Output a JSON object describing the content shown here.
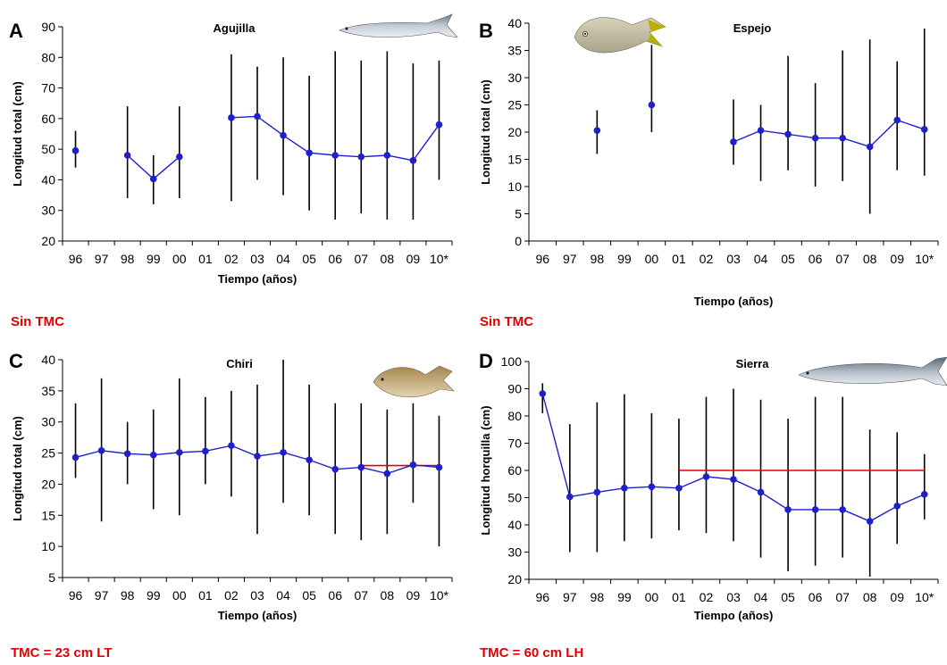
{
  "chart_data": [
    {
      "type": "scatter",
      "panel": "A",
      "title": "Agujilla",
      "fish_icon": "barracuda-fish-icon",
      "xlabel": "Tiempo (años)",
      "ylabel": "Longitud total (cm)",
      "ylim": [
        20,
        90
      ],
      "yticks": [
        20,
        30,
        40,
        50,
        60,
        70,
        80,
        90
      ],
      "categories": [
        "96",
        "97",
        "98",
        "99",
        "00",
        "01",
        "02",
        "03",
        "04",
        "05",
        "06",
        "07",
        "08",
        "09",
        "10*"
      ],
      "mean": [
        49.5,
        null,
        48,
        40.3,
        47.5,
        null,
        60.3,
        60.7,
        54.5,
        48.8,
        48,
        47.5,
        48,
        46.3,
        58
      ],
      "min": [
        44,
        null,
        34,
        32,
        34,
        null,
        33,
        40,
        35,
        30,
        27,
        29,
        27,
        27,
        40
      ],
      "max": [
        56,
        null,
        64,
        48,
        64,
        null,
        81,
        77,
        80,
        74,
        82,
        79,
        82,
        78,
        79
      ],
      "reference": null,
      "note": "Sin TMC",
      "series_color": "#1f1fcc",
      "bar_color": "#000000",
      "reference_color": "#e00000"
    },
    {
      "type": "scatter",
      "panel": "B",
      "title": "Espejo",
      "fish_icon": "lookdown-fish-icon",
      "xlabel": "Tiempo (años)",
      "ylabel": "Longitud total (cm)",
      "ylim": [
        0,
        40
      ],
      "yticks": [
        0,
        5,
        10,
        15,
        20,
        25,
        30,
        35,
        40
      ],
      "categories": [
        "96",
        "97",
        "98",
        "99",
        "00",
        "01",
        "02",
        "03",
        "04",
        "05",
        "06",
        "07",
        "08",
        "09",
        "10*"
      ],
      "mean": [
        null,
        null,
        20.3,
        null,
        25,
        null,
        null,
        18.2,
        20.3,
        19.6,
        18.9,
        18.9,
        17.3,
        22.2,
        20.5
      ],
      "min": [
        null,
        null,
        16,
        null,
        20,
        null,
        null,
        14,
        11,
        13,
        10,
        11,
        5,
        13,
        12
      ],
      "max": [
        null,
        null,
        24,
        null,
        36,
        null,
        null,
        26,
        25,
        34,
        29,
        35,
        37,
        33,
        39
      ],
      "reference": null,
      "note": "Sin TMC",
      "series_color": "#1f1fcc",
      "bar_color": "#000000",
      "reference_color": "#e00000"
    },
    {
      "type": "scatter",
      "panel": "C",
      "title": "Chiri",
      "fish_icon": "pompano-fish-icon",
      "xlabel": "Tiempo (años)",
      "ylabel": "Longitud total (cm)",
      "ylim": [
        5,
        40
      ],
      "yticks": [
        5,
        10,
        15,
        20,
        25,
        30,
        35,
        40
      ],
      "categories": [
        "96",
        "97",
        "98",
        "99",
        "00",
        "01",
        "02",
        "03",
        "04",
        "05",
        "06",
        "07",
        "08",
        "09",
        "10*"
      ],
      "mean": [
        24.3,
        25.4,
        24.9,
        24.7,
        25.1,
        25.3,
        26.2,
        24.5,
        25.1,
        23.9,
        22.4,
        22.7,
        21.7,
        23.1,
        22.7
      ],
      "min": [
        21,
        14,
        20,
        16,
        15,
        20,
        18,
        12,
        17,
        15,
        12,
        11,
        12,
        17,
        10
      ],
      "max": [
        33,
        37,
        30,
        32,
        37,
        34,
        35,
        36,
        40,
        36,
        33,
        33,
        32,
        33,
        31
      ],
      "reference": {
        "value": 23,
        "from": "07",
        "to": "10*"
      },
      "note": "TMC =  23 cm LT",
      "series_color": "#1f1fcc",
      "bar_color": "#000000",
      "reference_color": "#e00000"
    },
    {
      "type": "scatter",
      "panel": "D",
      "title": "Sierra",
      "fish_icon": "mackerel-fish-icon",
      "xlabel": "Tiempo (años)",
      "ylabel": "Longitud horquilla (cm)",
      "ylim": [
        20,
        100
      ],
      "yticks": [
        20,
        30,
        40,
        50,
        60,
        70,
        80,
        90,
        100
      ],
      "categories": [
        "96",
        "97",
        "98",
        "99",
        "00",
        "01",
        "02",
        "03",
        "04",
        "05",
        "06",
        "07",
        "08",
        "09",
        "10*"
      ],
      "mean": [
        88.2,
        50.3,
        52,
        53.5,
        54,
        53.5,
        57.7,
        56.7,
        52,
        45.6,
        45.6,
        45.6,
        41.3,
        46.9,
        51.2
      ],
      "min": [
        81,
        30,
        30,
        34,
        35,
        38,
        37,
        34,
        28,
        23,
        25,
        28,
        21,
        33,
        42
      ],
      "max": [
        92,
        77,
        85,
        88,
        81,
        79,
        87,
        90,
        86,
        79,
        87,
        87,
        75,
        74,
        66
      ],
      "reference": {
        "value": 60,
        "from": "01",
        "to": "10*"
      },
      "note": "TMC =  60 cm LH",
      "series_color": "#1f1fcc",
      "bar_color": "#000000",
      "reference_color": "#e00000"
    }
  ]
}
